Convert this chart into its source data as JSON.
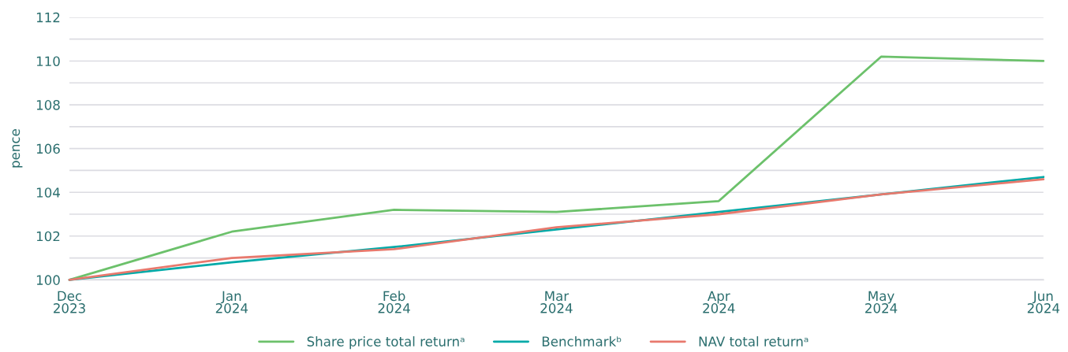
{
  "chart_data": {
    "type": "line",
    "ylabel": "pence",
    "categories": [
      "Dec\n2023",
      "Jan\n2024",
      "Feb\n2024",
      "Mar\n2024",
      "Apr\n2024",
      "May\n2024",
      "Jun\n2024"
    ],
    "series": [
      {
        "name": "Share price total returnᵃ",
        "color": "#6cc16b",
        "values": [
          100,
          102.2,
          103.2,
          103.1,
          103.6,
          110.2,
          110.0
        ]
      },
      {
        "name": "Benchmarkᵇ",
        "color": "#00aaa8",
        "values": [
          100,
          100.8,
          101.5,
          102.3,
          103.1,
          103.9,
          104.7
        ]
      },
      {
        "name": "NAV total returnᵃ",
        "color": "#e8796d",
        "values": [
          100,
          101.0,
          101.4,
          102.4,
          103.0,
          103.9,
          104.6
        ]
      }
    ],
    "ylim": [
      100,
      112
    ],
    "yticks": [
      100,
      {
        "value": 101,
        "label": null
      },
      102,
      {
        "value": 103,
        "label": null
      },
      104,
      {
        "value": 105,
        "label": null
      },
      106,
      {
        "value": 107,
        "label": null
      },
      108,
      {
        "value": 109,
        "label": null
      },
      110,
      {
        "value": 111,
        "label": null
      },
      112
    ],
    "grid": "y",
    "legend": "bottom"
  }
}
